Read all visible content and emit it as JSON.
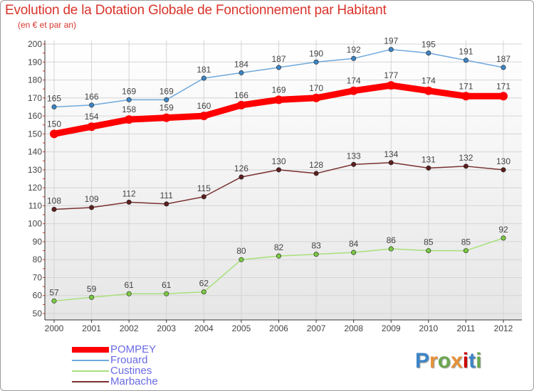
{
  "title": "Evolution de la Dotation Globale de Fonctionnement par Habitant",
  "subtitle": "(en € et par an)",
  "logo": "Proxiti",
  "colors": {
    "title": "#d9342b",
    "legend_text": "#6a6ae6",
    "axis": "#333333",
    "grid": "#d4d4d4",
    "plot_bg_top": "#ffffff",
    "plot_bg_bottom": "#e8e8e8"
  },
  "chart_data": {
    "type": "line",
    "x": [
      "2000",
      "2001",
      "2002",
      "2003",
      "2004",
      "2005",
      "2006",
      "2007",
      "2008",
      "2009",
      "2010",
      "2011",
      "2012"
    ],
    "ylim": [
      50,
      200
    ],
    "yticks": [
      50,
      60,
      70,
      80,
      90,
      100,
      110,
      120,
      130,
      140,
      150,
      160,
      170,
      180,
      190,
      200
    ],
    "grid": true,
    "legend_position": "bottom-left",
    "series": [
      {
        "name": "POMPEY",
        "color": "#ff0000",
        "values": [
          150,
          154,
          158,
          159,
          160,
          166,
          169,
          170,
          174,
          177,
          174,
          171,
          171
        ]
      },
      {
        "name": "Frouard",
        "color": "#6fa8dc",
        "marker": "#3d85c6",
        "values": [
          165,
          166,
          169,
          169,
          181,
          184,
          187,
          190,
          192,
          197,
          195,
          191,
          187
        ]
      },
      {
        "name": "Custines",
        "color": "#a8e07a",
        "marker": "#7ac943",
        "values": [
          57,
          59,
          61,
          61,
          62,
          80,
          82,
          83,
          84,
          86,
          85,
          85,
          92
        ]
      },
      {
        "name": "Marbache",
        "color": "#7a3030",
        "marker": "#5c1f1f",
        "values": [
          108,
          109,
          112,
          111,
          115,
          126,
          130,
          128,
          133,
          134,
          131,
          132,
          130
        ]
      }
    ]
  }
}
